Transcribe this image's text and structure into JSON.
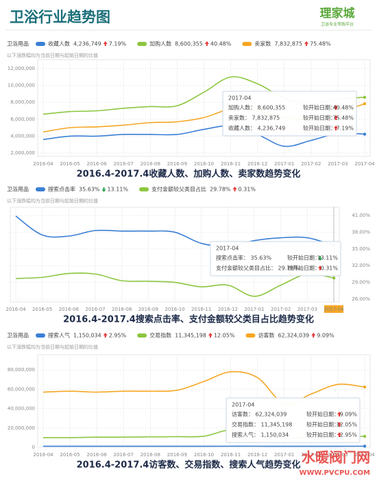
{
  "header": {
    "title": "卫浴行业趋势图",
    "logo": "理家城",
    "logo_sub": "卫浴专业导购平台"
  },
  "watermark": {
    "title": "水暖阀门网",
    "url": "WWW.PVCPU.COM"
  },
  "chart_data": [
    {
      "type": "line",
      "category_label": "卫浴用品",
      "note": "以下涨跌幅均为当前日期与起始日期的比值",
      "caption": "2016.4-2017.4收藏人数、加购人数、卖家数趋势变化",
      "categories": [
        "2016-04",
        "2016-05",
        "2016-06",
        "2016-07",
        "2016-08",
        "2016-09",
        "2016-10",
        "2016-11",
        "2016-12",
        "2017-01",
        "2017-02",
        "2017-03",
        "2017-04"
      ],
      "series": [
        {
          "name": "收藏人数",
          "color": "#3a7fd5",
          "latest": "4,236,749",
          "change": "7.19%",
          "trend": "up",
          "values": [
            3600000,
            4000000,
            4000000,
            4200000,
            4200000,
            4200000,
            4800000,
            5200000,
            4200000,
            2800000,
            3500000,
            4300000,
            4236749
          ]
        },
        {
          "name": "加购人数",
          "color": "#8cc63f",
          "latest": "8,600,355",
          "change": "40.48%",
          "trend": "up",
          "values": [
            6600000,
            6900000,
            7000000,
            7300000,
            7500000,
            7600000,
            9200000,
            11000000,
            10200000,
            8500000,
            7800000,
            8400000,
            8600355
          ]
        },
        {
          "name": "卖家数",
          "color": "#f5a623",
          "latest": "7,832,875",
          "change": "75.48%",
          "trend": "up",
          "values": [
            4500000,
            5000000,
            5100000,
            5300000,
            5600000,
            5700000,
            6200000,
            7200000,
            7000000,
            6200000,
            6000000,
            6800000,
            7832875
          ]
        }
      ],
      "ylim": [
        1600000,
        12400000
      ],
      "yticks": [
        {
          "value": 2000000,
          "label": "2,000,000"
        },
        {
          "value": 4000000,
          "label": "4,000,000"
        },
        {
          "value": 6000000,
          "label": "6,000,000"
        },
        {
          "value": 8000000,
          "label": "8,000,000"
        },
        {
          "value": 10000000,
          "label": "10,000,000"
        },
        {
          "value": 12000000,
          "label": "12,000,000"
        }
      ],
      "y_axis_side": "left",
      "grid": true,
      "tooltip": {
        "title": "2017-04",
        "rows": [
          {
            "label": "加购人数： 8,600,355",
            "compare": "较开始日期：",
            "change": "40.48%",
            "trend": "up",
            "color": "#5a9a1f"
          },
          {
            "label": "卖家数： 7,832,875",
            "compare": "较开始日期：",
            "change": "75.48%",
            "trend": "up",
            "color": "#e08a00"
          },
          {
            "label": "收藏人数： 4,236,749",
            "compare": "较开始日期：",
            "change": "7.19%",
            "trend": "up",
            "color": "#2b6cc4"
          }
        ]
      }
    },
    {
      "type": "line",
      "category_label": "卫浴用品",
      "note": "以下涨跌幅均为当前日期与起始日期的比值",
      "caption": "2016.4-2017.4搜索点击率、支付金额较父类目占比趋势变化",
      "categories": [
        "2016-04",
        "2016-05",
        "2016-06",
        "2016-07",
        "2016-08",
        "2016-09",
        "2016-10",
        "2016-11",
        "2016-12",
        "2017-01",
        "2017-02",
        "2017-03",
        "2017-04"
      ],
      "series": [
        {
          "name": "搜索点击率",
          "color": "#3a7fd5",
          "latest": "35.63%",
          "change": "13.11%",
          "trend": "down",
          "values": [
            40.9,
            37.5,
            37.3,
            38.3,
            38.2,
            38.2,
            38.0,
            36.0,
            35.5,
            36.5,
            37.0,
            37.0,
            35.63
          ]
        },
        {
          "name": "支付金额较父类目占比",
          "color": "#8cc63f",
          "latest": "29.78%",
          "change": "0.31%",
          "trend": "up",
          "values": [
            29.7,
            29.9,
            30.6,
            30.5,
            29.3,
            29.2,
            29.0,
            28.2,
            28.5,
            26.5,
            28.5,
            30.5,
            29.78
          ]
        }
      ],
      "ylim": [
        25.5,
        41.5
      ],
      "yticks": [
        {
          "value": 26,
          "label": "26.00%"
        },
        {
          "value": 29,
          "label": "29.00%"
        },
        {
          "value": 32,
          "label": "32.00%"
        },
        {
          "value": 35,
          "label": "35.00%"
        },
        {
          "value": 38,
          "label": "38.00%"
        },
        {
          "value": 41,
          "label": "41.00%"
        }
      ],
      "y_axis_side": "right",
      "grid": true,
      "tooltip": {
        "title": "2017-04",
        "rows": [
          {
            "label": "搜索点击率： 35.63%",
            "compare": "较开始日期：",
            "change": "13.11%",
            "trend": "down",
            "color": "#2b6cc4"
          },
          {
            "label": "支付金额较父类目占比： 29.78%",
            "compare": "较开始日期：",
            "change": "0.31%",
            "trend": "up",
            "color": "#5a9a1f"
          }
        ]
      }
    },
    {
      "type": "line",
      "category_label": "卫浴用品",
      "note": "以下涨跌幅均为当前日期与起始日期的比值",
      "caption": "2016.4-2017.4访客数、交易指数、搜索人气趋势变化",
      "categories": [
        "2016-04",
        "2016-05",
        "2016-06",
        "2016-07",
        "2016-08",
        "2016-09",
        "2016-10",
        "2016-11",
        "2016-12",
        "2017-01",
        "2017-02",
        "2017-03",
        "2017-04"
      ],
      "series": [
        {
          "name": "搜索人气",
          "color": "#3a7fd5",
          "latest": "1,150,034",
          "change": "2.95%",
          "trend": "up",
          "values": [
            1100000,
            1100000,
            1120000,
            1120000,
            1130000,
            1130000,
            1140000,
            1160000,
            1150000,
            1100000,
            1120000,
            1140000,
            1150034
          ]
        },
        {
          "name": "交易指数",
          "color": "#8cc63f",
          "latest": "11,345,198",
          "change": "12.05%",
          "trend": "up",
          "values": [
            10000000,
            10000000,
            10500000,
            10500000,
            10800000,
            11000000,
            11500000,
            18000000,
            13000000,
            10000000,
            10500000,
            11500000,
            11345198
          ]
        },
        {
          "name": "访客数",
          "color": "#f5a623",
          "latest": "62,324,039",
          "change": "9.09%",
          "trend": "up",
          "values": [
            57000000,
            58000000,
            57000000,
            58000000,
            58000000,
            59000000,
            68000000,
            78000000,
            72000000,
            45000000,
            55000000,
            65000000,
            62324039
          ]
        }
      ],
      "ylim": [
        0,
        90000000
      ],
      "yticks": [
        0,
        {
          "value": 20000000,
          "label": "20,000,000"
        },
        {
          "value": 40000000,
          "label": "40,000,000"
        },
        {
          "value": 60000000,
          "label": "60,000,000"
        },
        {
          "value": 80000000,
          "label": "80,000,000"
        }
      ],
      "y_axis_side": "left",
      "grid": true,
      "tooltip": {
        "title": "2017-04",
        "rows": [
          {
            "label": "访客数： 62,324,039",
            "compare": "较开始日期：",
            "change": "9.09%",
            "trend": "up",
            "color": "#e08a00"
          },
          {
            "label": "交易指数： 11,345,198",
            "compare": "较开始日期：",
            "change": "12.05%",
            "trend": "up",
            "color": "#5a9a1f"
          },
          {
            "label": "搜索人气： 1,150,034",
            "compare": "较开始日期：",
            "change": "2.95%",
            "trend": "up",
            "color": "#2b6cc4"
          }
        ]
      }
    }
  ]
}
